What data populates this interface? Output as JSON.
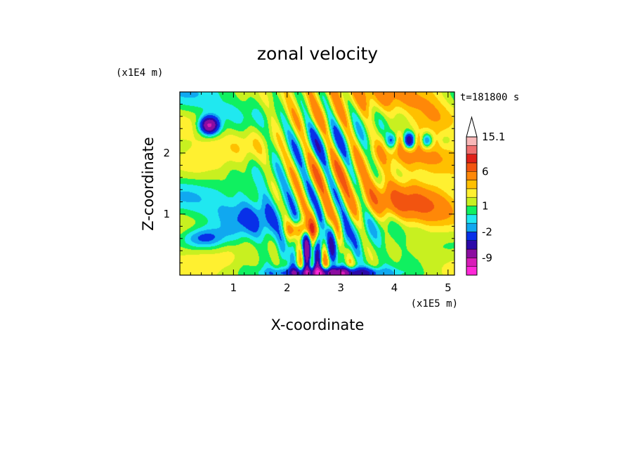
{
  "chart_data": {
    "type": "heatmap",
    "title": "zonal velocity",
    "xlabel": "X-coordinate",
    "ylabel": "Z-coordinate",
    "x_unit": "(x1E5 m)",
    "y_unit": "(x1E4 m)",
    "time_label": "t=181800 s",
    "xlim": [
      0,
      5.12
    ],
    "ylim": [
      0,
      3.0
    ],
    "x_ticks": [
      1,
      2,
      3,
      4,
      5
    ],
    "y_ticks": [
      1,
      2
    ],
    "colorbar": {
      "labels": [
        "15.1",
        "6",
        "1",
        "-2",
        "-9"
      ],
      "levels": [
        -15,
        -12,
        -9,
        -6,
        -4,
        -2,
        -1,
        0,
        1,
        2,
        3,
        4,
        6,
        8,
        10,
        12,
        15.1
      ],
      "colors": [
        "#ff28d8",
        "#d81cb8",
        "#8c0ca0",
        "#2c08a8",
        "#0830e8",
        "#10a8f0",
        "#20e8f0",
        "#10f060",
        "#c8f020",
        "#fff030",
        "#ffc000",
        "#ff8808",
        "#f25410",
        "#e02018",
        "#f07070",
        "#f8b8b8"
      ],
      "extend_max": true
    },
    "field_features": [
      {
        "x": 0.55,
        "z": 2.45,
        "u": -9
      },
      {
        "x": 1.6,
        "z": 0.9,
        "u": -1
      },
      {
        "x": 2.3,
        "z": 0.75,
        "u": 8
      },
      {
        "x": 2.5,
        "z": 0.3,
        "u": -9
      },
      {
        "x": 2.75,
        "z": 0.05,
        "u": -9
      },
      {
        "x": 2.7,
        "z": 2.5,
        "u": 4
      },
      {
        "x": 4.4,
        "z": 1.2,
        "u": 6
      },
      {
        "x": 4.3,
        "z": 2.2,
        "u": -9
      },
      {
        "x": 0.4,
        "z": 0.6,
        "u": -2
      }
    ]
  }
}
